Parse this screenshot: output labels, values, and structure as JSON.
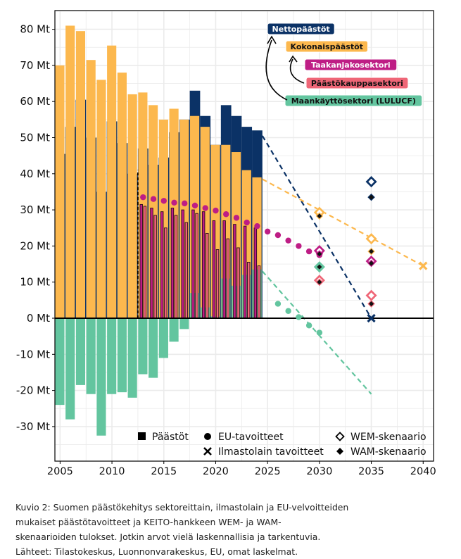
{
  "chart_data": {
    "type": "bar",
    "title": "",
    "xlabel": "",
    "ylabel": "",
    "ylim": [
      -38,
      85
    ],
    "xlim": [
      2004.5,
      2041
    ],
    "y_ticks": [
      80,
      70,
      60,
      50,
      40,
      30,
      20,
      10,
      0,
      -10,
      -20,
      -30
    ],
    "y_tick_labels": [
      "80 Mt",
      "70 Mt",
      "60 Mt",
      "50 Mt",
      "40 Mt",
      "30 Mt",
      "20 Mt",
      "10 Mt",
      "0 Mt",
      "-10 Mt",
      "-20 Mt",
      "-30 Mt"
    ],
    "x_ticks": [
      2005,
      2010,
      2015,
      2020,
      2025,
      2030,
      2035,
      2040
    ],
    "x_tick_labels": [
      "2005",
      "2010",
      "2015",
      "2020",
      "2025",
      "2030",
      "2035",
      "2040"
    ],
    "grid": true,
    "years": [
      2005,
      2006,
      2007,
      2008,
      2009,
      2010,
      2011,
      2012,
      2013,
      2014,
      2015,
      2016,
      2017,
      2018,
      2019,
      2020,
      2021,
      2022,
      2023,
      2024
    ],
    "series": [
      {
        "name": "Nettopäästöt",
        "color": "#0b3266",
        "values": [
          45.5,
          53.0,
          60.5,
          50.0,
          35.0,
          54.5,
          48.5,
          40.0,
          47.0,
          42.5,
          44.5,
          51.5,
          55.0,
          63.0,
          56.0,
          48.0,
          59.0,
          56.0,
          53.0,
          52.0
        ]
      },
      {
        "name": "Kokonaispäästöt",
        "color": "#fcb84e",
        "values": [
          70.0,
          81.0,
          79.5,
          71.5,
          66.0,
          75.5,
          68.0,
          62.0,
          62.5,
          59.0,
          55.0,
          58.0,
          55.0,
          56.0,
          53.0,
          48.0,
          48.0,
          46.0,
          41.0,
          39.0
        ]
      },
      {
        "name": "Maankäyttösektori (LULUCF)",
        "color": "#63c59f",
        "values": [
          -24.0,
          -28.0,
          -18.5,
          -21.0,
          -32.5,
          -21.0,
          -20.5,
          -22.0,
          -15.5,
          -16.5,
          -11.0,
          -6.5,
          -3.0,
          7.0,
          3.0,
          0.5,
          11.0,
          9.0,
          12.0,
          13.5
        ]
      },
      {
        "name": "Taakanjakosektori",
        "color": "#be1d85",
        "values": [
          null,
          null,
          null,
          null,
          null,
          null,
          null,
          null,
          31.5,
          30.5,
          29.5,
          30.5,
          30.0,
          30.0,
          29.5,
          27.0,
          27.0,
          26.0,
          25.5,
          25.0
        ]
      },
      {
        "name": "Päästökauppasektori",
        "color": "#ef6677",
        "values": [
          null,
          null,
          null,
          null,
          null,
          null,
          null,
          null,
          31.0,
          28.5,
          25.0,
          28.5,
          26.5,
          29.0,
          23.5,
          19.0,
          22.0,
          19.5,
          15.5,
          14.5
        ]
      }
    ],
    "split_year": 2012.5,
    "eu_targets": {
      "Taakanjakosektori": [
        [
          2013,
          33.5
        ],
        [
          2014,
          33.0
        ],
        [
          2015,
          32.5
        ],
        [
          2016,
          32.0
        ],
        [
          2017,
          31.8
        ],
        [
          2018,
          31.2
        ],
        [
          2019,
          30.5
        ],
        [
          2020,
          29.8
        ],
        [
          2021,
          28.8
        ],
        [
          2022,
          27.8
        ],
        [
          2023,
          26.5
        ],
        [
          2024,
          25.5
        ],
        [
          2025,
          24.0
        ],
        [
          2026,
          23.0
        ],
        [
          2027,
          21.5
        ],
        [
          2028,
          20.0
        ],
        [
          2029,
          18.5
        ],
        [
          2030,
          17.5
        ]
      ],
      "Maankäyttösektori (LULUCF)": [
        [
          2026,
          4.0
        ],
        [
          2027,
          2.0
        ],
        [
          2028,
          0.3
        ],
        [
          2029,
          -2.0
        ],
        [
          2030,
          -4.0
        ]
      ]
    },
    "trend_lines": [
      {
        "series": "Nettopäästöt",
        "from": [
          2024.5,
          50.5
        ],
        "to": [
          2035,
          0
        ]
      },
      {
        "series": "Kokonaispäästöt",
        "from": [
          2024.5,
          38.5
        ],
        "to": [
          2040,
          14.5
        ]
      },
      {
        "series": "Maankäyttösektori (LULUCF)",
        "from": [
          2024.5,
          13.0
        ],
        "to": [
          2035,
          -21.0
        ]
      }
    ],
    "climate_act_targets": [
      {
        "series": "Nettopäästöt",
        "x": 2035,
        "y": 0
      },
      {
        "series": "Kokonaispäästöt",
        "x": 2040,
        "y": 14.5
      }
    ],
    "wem_scenario": [
      {
        "series": "Kokonaispäästöt",
        "x": 2030,
        "y": 29.3
      },
      {
        "series": "Taakanjakosektori",
        "x": 2030,
        "y": 18.7
      },
      {
        "series": "Maankäyttösektori (LULUCF)",
        "x": 2030,
        "y": 14.2
      },
      {
        "series": "Päästökauppasektori",
        "x": 2030,
        "y": 10.5
      },
      {
        "series": "Nettopäästöt",
        "x": 2035,
        "y": 37.8
      },
      {
        "series": "Kokonaispäästöt",
        "x": 2035,
        "y": 22.0
      },
      {
        "series": "Taakanjakosektori",
        "x": 2035,
        "y": 15.8
      },
      {
        "series": "Päästökauppasektori",
        "x": 2035,
        "y": 6.3
      }
    ],
    "wam_scenario": [
      {
        "series": "Kokonaispäästöt",
        "x": 2030,
        "y": 28.3
      },
      {
        "series": "Taakanjakosektori",
        "x": 2030,
        "y": 17.8
      },
      {
        "series": "Maankäyttösektori (LULUCF)",
        "x": 2030,
        "y": 14.2
      },
      {
        "series": "Päästökauppasektori",
        "x": 2030,
        "y": 10.0
      },
      {
        "series": "Nettopäästöt",
        "x": 2035,
        "y": 33.5
      },
      {
        "series": "Kokonaispäästöt",
        "x": 2035,
        "y": 18.5
      },
      {
        "series": "Taakanjakosektori",
        "x": 2035,
        "y": 15.2
      },
      {
        "series": "Päästökauppasektori",
        "x": 2035,
        "y": 4.0
      }
    ],
    "callouts": [
      {
        "label": "Nettopäästöt",
        "fill": "#0b3266",
        "text_color": "#ffffff"
      },
      {
        "label": "Kokonaispäästöt",
        "fill": "#fcb84e",
        "text_color": "#111111"
      },
      {
        "label": "Taakanjakosektori",
        "fill": "#be1d85",
        "text_color": "#ffffff"
      },
      {
        "label": "Päästökauppasektori",
        "fill": "#ef6677",
        "text_color": "#111111"
      },
      {
        "label": "Maankäyttösektori (LULUCF)",
        "fill": "#63c59f",
        "text_color": "#111111"
      }
    ],
    "legend": [
      {
        "symbol": "square",
        "label": "Päästöt"
      },
      {
        "symbol": "circle",
        "label": "EU-tavoitteet"
      },
      {
        "symbol": "x",
        "label": "Ilmastolain tavoitteet"
      },
      {
        "symbol": "diamond-open",
        "label": "WEM-skenaario"
      },
      {
        "symbol": "diamond-filled",
        "label": "WAM-skenaario"
      }
    ]
  },
  "caption": {
    "line1": "Kuvio 2: Suomen päästökehitys sektoreittain, ilmastolain ja EU-velvoitteiden",
    "line2": "mukaiset päästötavoitteet ja KEITO-hankkeen WEM- ja WAM-",
    "line3": "skenaarioiden tulokset. Jotkin arvot vielä laskennallisia ja tarkentuvia.",
    "line4": "Lähteet: Tilastokeskus, Luonnonvarakeskus, EU, omat laskelmat."
  }
}
